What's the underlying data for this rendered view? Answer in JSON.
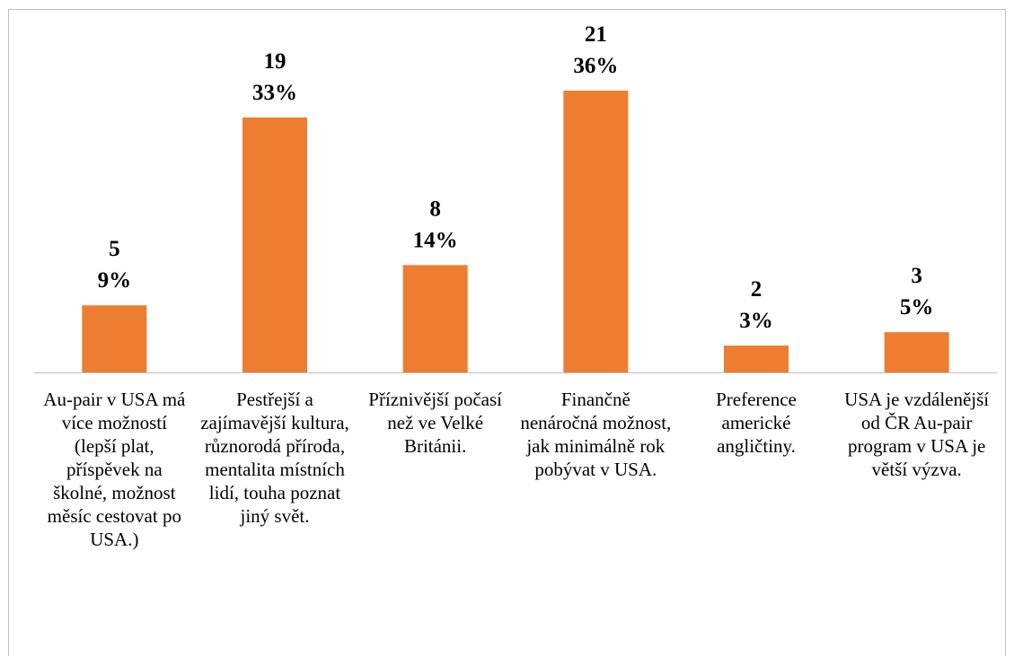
{
  "chart_data": {
    "type": "bar",
    "categories": [
      "Au-pair v USA má více možností (lepší plat, příspěvek na školné, možnost měsíc cestovat po USA.)",
      "Pestřejší a zajímavější kultura, různorodá příroda, mentalita místních lidí, touha poznat jiný svět.",
      "Příznivější počasí než ve Velké Británii.",
      "Finančně nenáročná možnost, jak minimálně rok pobývat v USA.",
      "Preference americké angličtiny.",
      "USA je vzdálenější od ČR Au-pair program v USA je větší výzva."
    ],
    "values": [
      5,
      19,
      8,
      21,
      2,
      3
    ],
    "share_labels": [
      "9%",
      "33%",
      "14%",
      "36%",
      "3%",
      "5%"
    ],
    "color": "#ed7d31"
  }
}
